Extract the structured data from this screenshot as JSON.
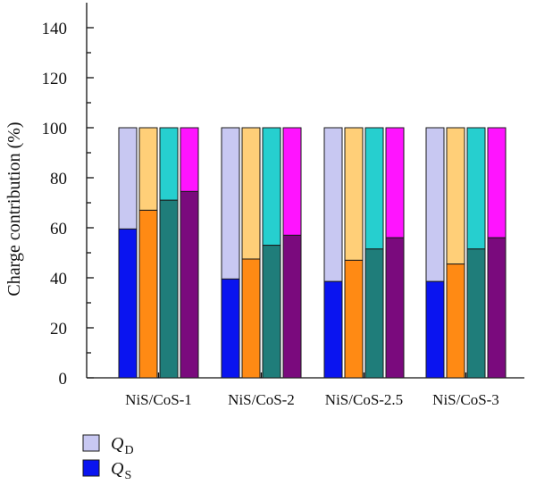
{
  "chart_data": {
    "type": "bar",
    "stacked": true,
    "ylabel": "Charge contribution (%)",
    "ylim": [
      0,
      150
    ],
    "yticks": [
      0,
      20,
      40,
      60,
      80,
      100,
      120,
      140
    ],
    "grid": false,
    "categories": [
      "NiS/CoS-1",
      "NiS/CoS-2",
      "NiS/CoS-2.5",
      "NiS/CoS-3"
    ],
    "bars_per_category": 4,
    "bar_colors": [
      {
        "surface": "#0a14f0",
        "diffusion": "#c8c8f2"
      },
      {
        "surface": "#ff8a14",
        "diffusion": "#ffcf78"
      },
      {
        "surface": "#1f7d7a",
        "diffusion": "#26cfcf"
      },
      {
        "surface": "#7a0a7d",
        "diffusion": "#ff14ff"
      }
    ],
    "series": [
      {
        "name": "QS",
        "values": [
          [
            59.5,
            67,
            71,
            74.5
          ],
          [
            39.5,
            47.5,
            53,
            57
          ],
          [
            38.5,
            47,
            51.5,
            56
          ],
          [
            38.5,
            45.5,
            51.5,
            56
          ]
        ]
      },
      {
        "name": "QD",
        "values": [
          [
            40.5,
            33,
            29,
            25.5
          ],
          [
            60.5,
            52.5,
            47,
            43
          ],
          [
            61.5,
            53,
            48.5,
            44
          ],
          [
            61.5,
            54.5,
            48.5,
            44
          ]
        ]
      }
    ],
    "legend": {
      "position": "bottom-left",
      "entries": [
        {
          "label": "Q",
          "sub": "D",
          "color": "#c8c8f2"
        },
        {
          "label": "Q",
          "sub": "S",
          "color": "#0a14f0"
        }
      ]
    }
  }
}
